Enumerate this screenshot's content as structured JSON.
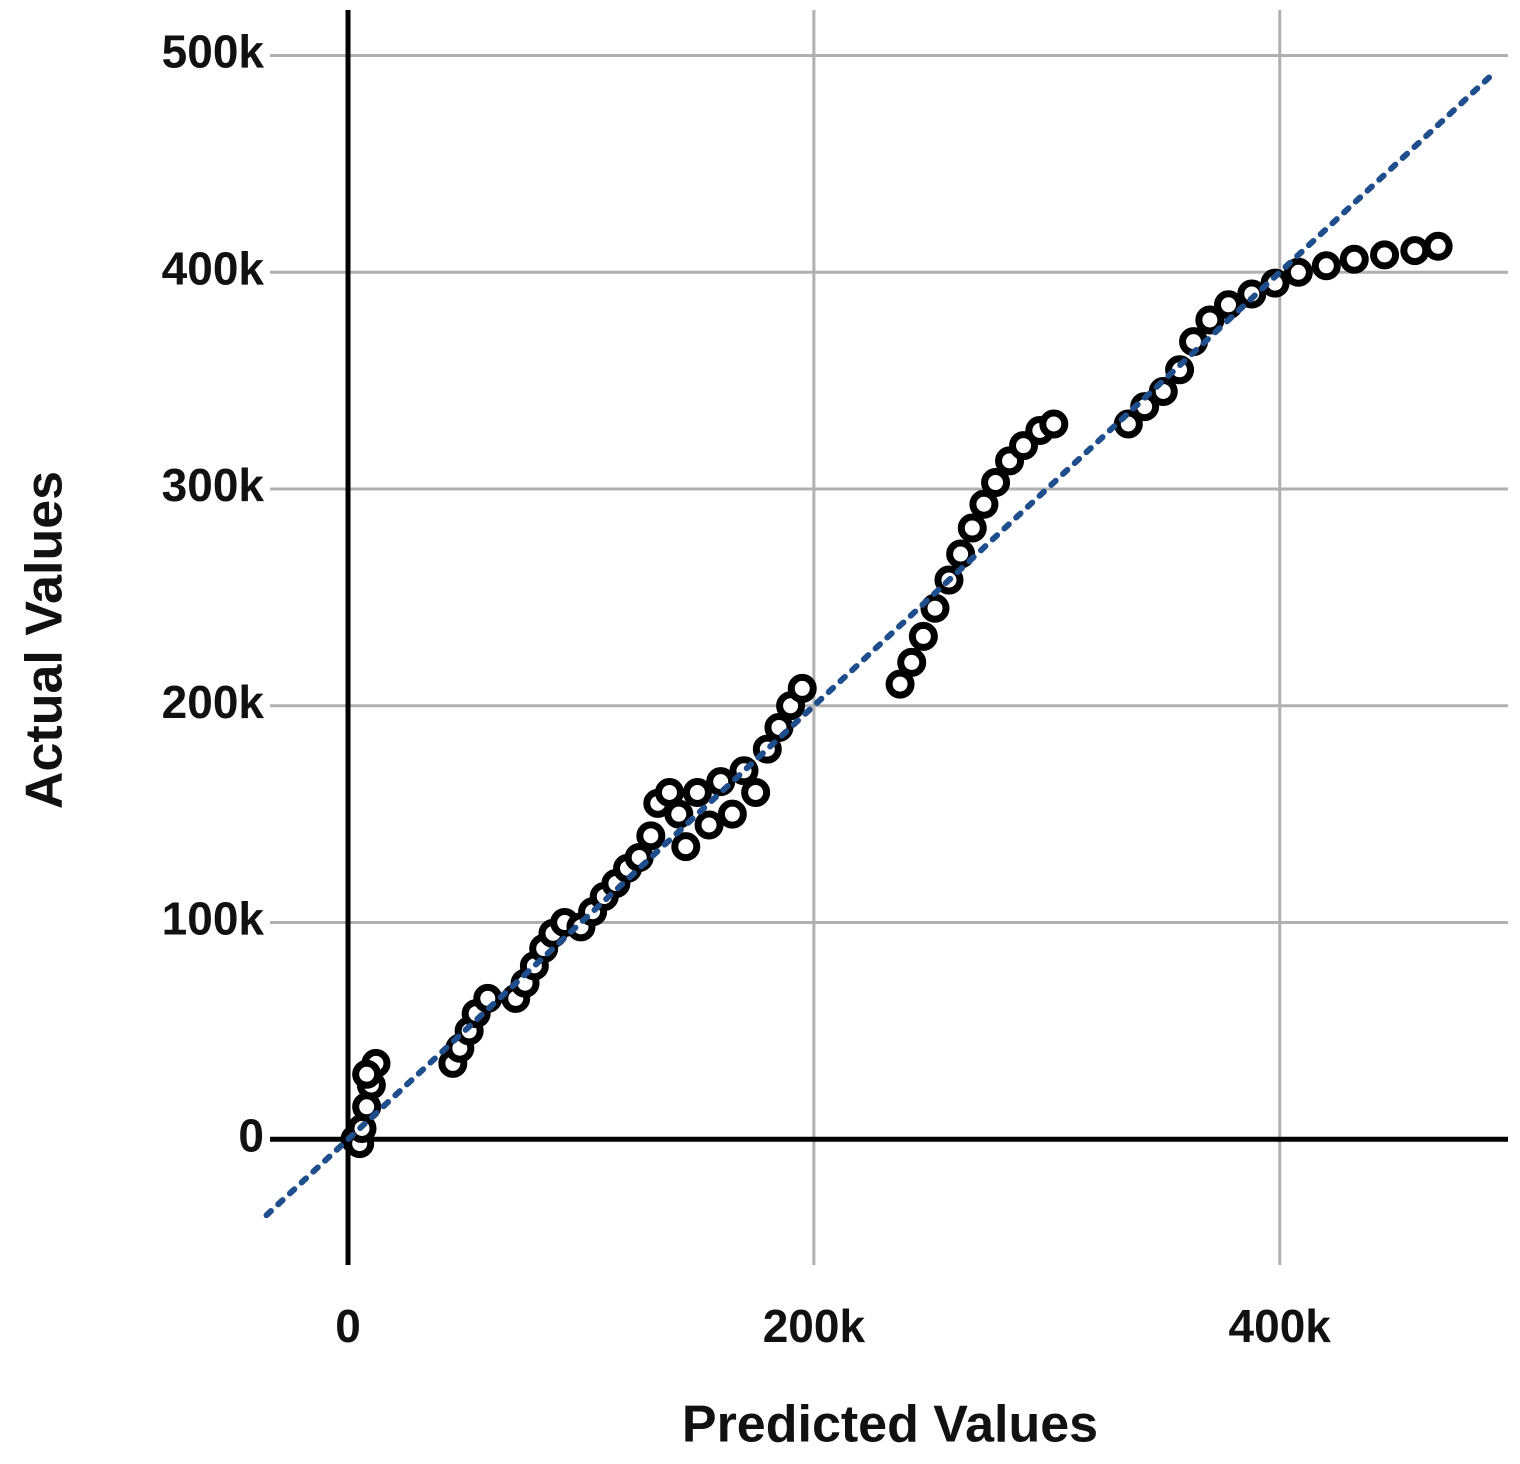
{
  "chart_data": {
    "type": "scatter",
    "x_label": "Predicted Values",
    "y_label": "Actual Values",
    "xlim": [
      -33500,
      498000
    ],
    "ylim": [
      -58000,
      521000
    ],
    "xticks": [
      0,
      {
        "value": 200000,
        "label": "200k"
      },
      {
        "value": 400000,
        "label": "400k"
      }
    ],
    "yticks": [
      0,
      {
        "value": 100000,
        "label": "100k"
      },
      {
        "value": 200000,
        "label": "200k"
      },
      {
        "value": 300000,
        "label": "300k"
      },
      {
        "value": 400000,
        "label": "400k"
      },
      {
        "value": 500000,
        "label": "500k"
      }
    ],
    "grid": true,
    "series": [
      {
        "color": "#000000",
        "x": [
          3000,
          5000,
          6000,
          8000,
          10000,
          12000,
          8000,
          45000,
          48000,
          52000,
          55000,
          60000,
          72000,
          76000,
          80000,
          84000,
          88000,
          93000,
          100000,
          105000,
          110000,
          115000,
          120000,
          125000,
          130000,
          133000,
          138000,
          142000,
          145000,
          150000,
          155000,
          160000,
          165000,
          170000,
          175000,
          180000,
          185000,
          190000,
          195000,
          237000,
          242000,
          247000,
          252000,
          258000,
          263000,
          268000,
          273000,
          278000,
          284000,
          290000,
          297000,
          303000,
          335000,
          342000,
          350000,
          357000,
          363000,
          370000,
          378000,
          388000,
          398000,
          408000,
          420000,
          432000,
          445000,
          458000,
          468000
        ],
        "y": [
          0,
          -2000,
          5000,
          15000,
          25000,
          35000,
          30000,
          35000,
          42000,
          50000,
          58000,
          65000,
          65000,
          72000,
          80000,
          88000,
          95000,
          100000,
          98000,
          105000,
          112000,
          118000,
          125000,
          130000,
          140000,
          155000,
          160000,
          150000,
          135000,
          160000,
          145000,
          165000,
          150000,
          170000,
          160000,
          180000,
          190000,
          200000,
          208000,
          210000,
          220000,
          232000,
          245000,
          258000,
          270000,
          282000,
          293000,
          303000,
          313000,
          320000,
          327000,
          330000,
          330000,
          338000,
          345000,
          355000,
          368000,
          378000,
          385000,
          390000,
          395000,
          400000,
          403000,
          406000,
          408000,
          410000,
          412000
        ]
      }
    ],
    "reference_line": {
      "color": "#1f4e8c",
      "x": [
        -35000,
        492000
      ],
      "y": [
        -35000,
        492000
      ]
    }
  }
}
